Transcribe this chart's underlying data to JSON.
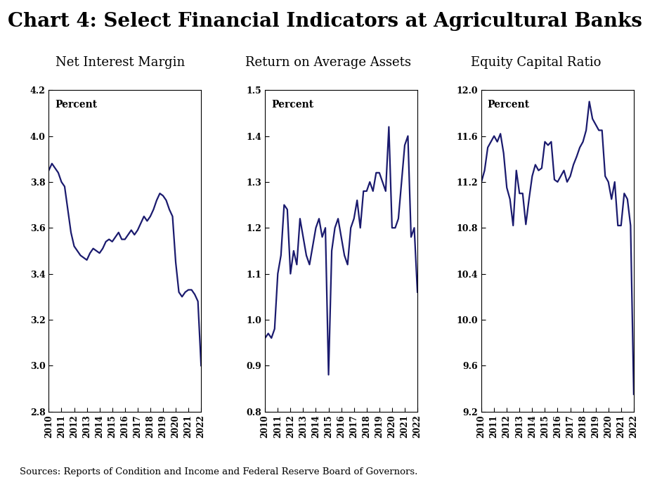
{
  "title": "Chart 4: Select Financial Indicators at Agricultural Banks",
  "title_fontsize": 20,
  "title_fontweight": "bold",
  "subtitle1": "Net Interest Margin",
  "subtitle2": "Return on Average Assets",
  "subtitle3": "Equity Capital Ratio",
  "subtitle_fontsize": 13,
  "ylabel_text": "Percent",
  "ylabel_fontsize": 10,
  "ylabel_fontweight": "bold",
  "source_text": "Sources: Reports of Condition and Income and Federal Reserve Board of Governors.",
  "source_fontsize": 9.5,
  "line_color": "#1a1a6e",
  "line_width": 1.6,
  "background_color": "#ffffff",
  "nim_ylim": [
    2.8,
    4.2
  ],
  "nim_yticks": [
    2.8,
    3.0,
    3.2,
    3.4,
    3.6,
    3.8,
    4.0,
    4.2
  ],
  "roa_ylim": [
    0.8,
    1.5
  ],
  "roa_yticks": [
    0.8,
    0.9,
    1.0,
    1.1,
    1.2,
    1.3,
    1.4,
    1.5
  ],
  "ecr_ylim": [
    9.2,
    12.0
  ],
  "ecr_yticks": [
    9.2,
    9.6,
    10.0,
    10.4,
    10.8,
    11.2,
    11.6,
    12.0
  ],
  "nim_values": [
    3.85,
    3.88,
    3.86,
    3.84,
    3.8,
    3.78,
    3.68,
    3.58,
    3.52,
    3.5,
    3.48,
    3.47,
    3.46,
    3.49,
    3.51,
    3.5,
    3.49,
    3.51,
    3.54,
    3.55,
    3.54,
    3.56,
    3.58,
    3.55,
    3.55,
    3.57,
    3.59,
    3.57,
    3.59,
    3.62,
    3.65,
    3.63,
    3.65,
    3.68,
    3.72,
    3.75,
    3.74,
    3.72,
    3.68,
    3.65,
    3.45,
    3.32,
    3.3,
    3.32,
    3.33,
    3.33,
    3.31,
    3.28,
    3.0
  ],
  "roa_values": [
    0.96,
    0.97,
    0.96,
    0.98,
    1.1,
    1.14,
    1.25,
    1.24,
    1.1,
    1.15,
    1.12,
    1.22,
    1.18,
    1.14,
    1.12,
    1.16,
    1.2,
    1.22,
    1.18,
    1.2,
    0.88,
    1.15,
    1.2,
    1.22,
    1.18,
    1.14,
    1.12,
    1.2,
    1.22,
    1.26,
    1.2,
    1.28,
    1.28,
    1.3,
    1.28,
    1.32,
    1.32,
    1.3,
    1.28,
    1.42,
    1.2,
    1.2,
    1.22,
    1.3,
    1.38,
    1.4,
    1.18,
    1.2,
    1.06
  ],
  "ecr_values": [
    11.2,
    11.3,
    11.5,
    11.55,
    11.6,
    11.55,
    11.62,
    11.45,
    11.15,
    11.05,
    10.82,
    11.3,
    11.1,
    11.1,
    10.83,
    11.05,
    11.25,
    11.35,
    11.3,
    11.32,
    11.55,
    11.52,
    11.55,
    11.22,
    11.2,
    11.25,
    11.3,
    11.2,
    11.25,
    11.35,
    11.42,
    11.5,
    11.55,
    11.65,
    11.9,
    11.75,
    11.7,
    11.65,
    11.65,
    11.25,
    11.2,
    11.05,
    11.2,
    10.82,
    10.82,
    11.1,
    11.05,
    10.82,
    9.35
  ],
  "xtick_years": [
    "2010",
    "2011",
    "2012",
    "2013",
    "2014",
    "2015",
    "2016",
    "2017",
    "2018",
    "2019",
    "2020",
    "2021",
    "2022"
  ],
  "xtick_positions": [
    0,
    4,
    8,
    12,
    16,
    20,
    24,
    28,
    32,
    36,
    40,
    44,
    48
  ]
}
